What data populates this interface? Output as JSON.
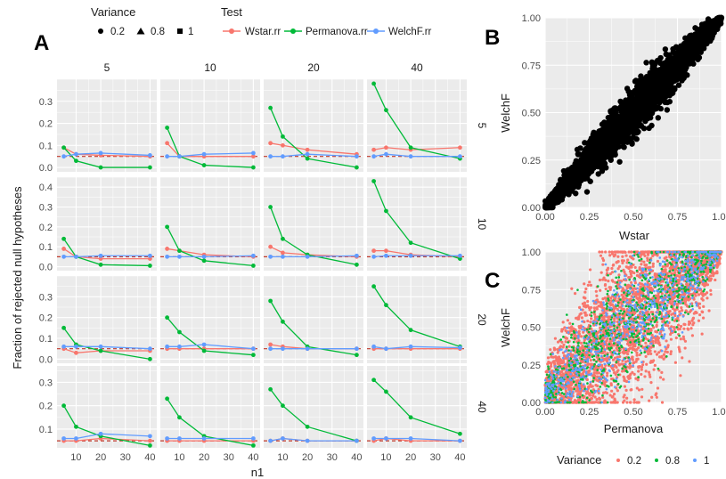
{
  "colors": {
    "wstar": "#F8766D",
    "permanova": "#00BA38",
    "welchf": "#619CFF",
    "ref": "#C0392B",
    "bg": "#EBEBEB",
    "grid": "#FFFFFF"
  },
  "panels": {
    "a": "A",
    "b": "B",
    "c": "C"
  },
  "legend": {
    "variance_title": "Variance",
    "variance_items": [
      "0.2",
      "0.8",
      "1"
    ],
    "test_title": "Test",
    "test_items": [
      "Wstar.rr",
      "Permanova.rr",
      "WelchF.rr"
    ]
  },
  "chart_data": [
    {
      "type": "line",
      "panel": "A",
      "xlabel": "n1",
      "ylabel": "Fraction of rejected null hypotheses",
      "x": [
        5,
        10,
        20,
        40
      ],
      "x_ticks": [
        10,
        20,
        30,
        40
      ],
      "col_strips": [
        "5",
        "10",
        "20",
        "40"
      ],
      "row_strips": [
        "5",
        "10",
        "20",
        "40"
      ],
      "reference_line": 0.05,
      "rows": [
        {
          "y_ticks": [
            0.0,
            0.1,
            0.2,
            0.3
          ],
          "ylim": [
            -0.02,
            0.4
          ],
          "cells": [
            {
              "Wstar.rr": [
                0.09,
                0.06,
                0.055,
                0.05
              ],
              "Permanova.rr": [
                0.09,
                0.03,
                0.0,
                0.0
              ],
              "WelchF.rr": [
                0.05,
                0.06,
                0.065,
                0.055
              ]
            },
            {
              "Wstar.rr": [
                0.11,
                0.05,
                0.05,
                0.05
              ],
              "Permanova.rr": [
                0.18,
                0.05,
                0.01,
                0.0
              ],
              "WelchF.rr": [
                0.05,
                0.05,
                0.06,
                0.065
              ]
            },
            {
              "Wstar.rr": [
                0.11,
                0.1,
                0.08,
                0.06
              ],
              "Permanova.rr": [
                0.27,
                0.14,
                0.04,
                0.0
              ],
              "WelchF.rr": [
                0.05,
                0.05,
                0.06,
                0.05
              ]
            },
            {
              "Wstar.rr": [
                0.08,
                0.09,
                0.08,
                0.09
              ],
              "Permanova.rr": [
                0.38,
                0.26,
                0.09,
                0.04
              ],
              "WelchF.rr": [
                0.05,
                0.06,
                0.05,
                0.05
              ]
            }
          ]
        },
        {
          "y_ticks": [
            0.0,
            0.1,
            0.2,
            0.3,
            0.4
          ],
          "ylim": [
            -0.02,
            0.45
          ],
          "cells": [
            {
              "Wstar.rr": [
                0.09,
                0.05,
                0.04,
                0.04
              ],
              "Permanova.rr": [
                0.14,
                0.05,
                0.01,
                0.005
              ],
              "WelchF.rr": [
                0.05,
                0.05,
                0.055,
                0.055
              ]
            },
            {
              "Wstar.rr": [
                0.09,
                0.08,
                0.06,
                0.05
              ],
              "Permanova.rr": [
                0.2,
                0.08,
                0.03,
                0.005
              ],
              "WelchF.rr": [
                0.05,
                0.05,
                0.05,
                0.055
              ]
            },
            {
              "Wstar.rr": [
                0.1,
                0.07,
                0.06,
                0.05
              ],
              "Permanova.rr": [
                0.3,
                0.14,
                0.06,
                0.01
              ],
              "WelchF.rr": [
                0.05,
                0.05,
                0.05,
                0.055
              ]
            },
            {
              "Wstar.rr": [
                0.08,
                0.08,
                0.06,
                0.05
              ],
              "Permanova.rr": [
                0.43,
                0.28,
                0.12,
                0.04
              ],
              "WelchF.rr": [
                0.05,
                0.055,
                0.055,
                0.055
              ]
            }
          ]
        },
        {
          "y_ticks": [
            0.0,
            0.1,
            0.2,
            0.3
          ],
          "ylim": [
            -0.02,
            0.4
          ],
          "cells": [
            {
              "Wstar.rr": [
                0.05,
                0.03,
                0.04,
                0.04
              ],
              "Permanova.rr": [
                0.15,
                0.07,
                0.04,
                0.0
              ],
              "WelchF.rr": [
                0.06,
                0.06,
                0.06,
                0.05
              ]
            },
            {
              "Wstar.rr": [
                0.05,
                0.05,
                0.05,
                0.05
              ],
              "Permanova.rr": [
                0.2,
                0.13,
                0.04,
                0.02
              ],
              "WelchF.rr": [
                0.06,
                0.06,
                0.07,
                0.05
              ]
            },
            {
              "Wstar.rr": [
                0.07,
                0.06,
                0.05,
                0.05
              ],
              "Permanova.rr": [
                0.28,
                0.18,
                0.06,
                0.02
              ],
              "WelchF.rr": [
                0.05,
                0.05,
                0.05,
                0.05
              ]
            },
            {
              "Wstar.rr": [
                0.05,
                0.05,
                0.05,
                0.05
              ],
              "Permanova.rr": [
                0.35,
                0.26,
                0.14,
                0.06
              ],
              "WelchF.rr": [
                0.06,
                0.05,
                0.06,
                0.055
              ]
            }
          ]
        },
        {
          "y_ticks": [
            0.1,
            0.2,
            0.3
          ],
          "ylim": [
            0.02,
            0.37
          ],
          "cells": [
            {
              "Wstar.rr": [
                0.05,
                0.05,
                0.06,
                0.05
              ],
              "Permanova.rr": [
                0.2,
                0.11,
                0.07,
                0.03
              ],
              "WelchF.rr": [
                0.06,
                0.06,
                0.08,
                0.07
              ]
            },
            {
              "Wstar.rr": [
                0.05,
                0.05,
                0.05,
                0.05
              ],
              "Permanova.rr": [
                0.23,
                0.15,
                0.07,
                0.03
              ],
              "WelchF.rr": [
                0.06,
                0.06,
                0.06,
                0.06
              ]
            },
            {
              "Wstar.rr": [
                0.05,
                0.06,
                0.05,
                0.05
              ],
              "Permanova.rr": [
                0.27,
                0.2,
                0.11,
                0.05
              ],
              "WelchF.rr": [
                0.05,
                0.06,
                0.05,
                0.05
              ]
            },
            {
              "Wstar.rr": [
                0.05,
                0.06,
                0.05,
                0.05
              ],
              "Permanova.rr": [
                0.31,
                0.26,
                0.15,
                0.08
              ],
              "WelchF.rr": [
                0.06,
                0.06,
                0.06,
                0.05
              ]
            }
          ]
        }
      ]
    },
    {
      "type": "scatter",
      "panel": "B",
      "xlabel": "Wstar",
      "ylabel": "WelchF",
      "xlim": [
        0,
        1
      ],
      "ylim": [
        0,
        1
      ],
      "x_ticks": [
        "0.00",
        "0.25",
        "0.50",
        "0.75",
        "1.00"
      ],
      "y_ticks": [
        "0.00",
        "0.25",
        "0.50",
        "0.75",
        "1.00"
      ],
      "relationship": "y = x",
      "point_color": "#000000"
    },
    {
      "type": "scatter",
      "panel": "C",
      "xlabel": "Permanova",
      "ylabel": "WelchF",
      "xlim": [
        0,
        1
      ],
      "ylim": [
        0,
        1
      ],
      "x_ticks": [
        "0.00",
        "0.25",
        "0.50",
        "0.75",
        "1.00"
      ],
      "y_ticks": [
        "0.00",
        "0.25",
        "0.50",
        "0.75",
        "1.00"
      ],
      "legend_title": "Variance",
      "series": [
        {
          "name": "0.2",
          "color": "#F8766D"
        },
        {
          "name": "0.8",
          "color": "#00BA38"
        },
        {
          "name": "1",
          "color": "#619CFF"
        }
      ]
    }
  ]
}
